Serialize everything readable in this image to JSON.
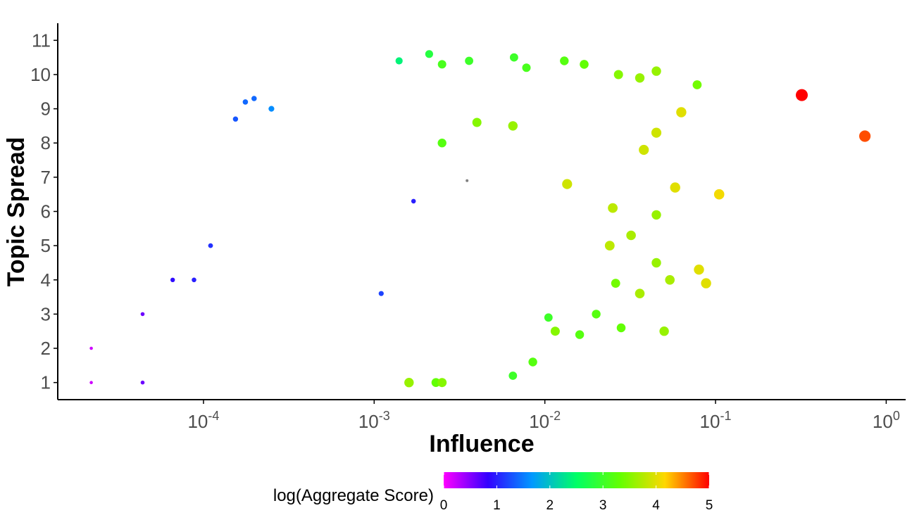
{
  "chart_data": {
    "type": "scatter",
    "title": "",
    "xlabel": "Influence",
    "ylabel": "Topic Spread",
    "xscale": "log10",
    "xlim": [
      1.4e-05,
      1.3
    ],
    "ylim": [
      0.5,
      11.5
    ],
    "x_ticks": [
      {
        "value": 0.0001,
        "base": "10",
        "exp": "-4"
      },
      {
        "value": 0.001,
        "base": "10",
        "exp": "-3"
      },
      {
        "value": 0.01,
        "base": "10",
        "exp": "-2"
      },
      {
        "value": 0.1,
        "base": "10",
        "exp": "-1"
      },
      {
        "value": 1,
        "base": "10",
        "exp": "0"
      }
    ],
    "y_ticks": [
      "1",
      "2",
      "3",
      "4",
      "5",
      "6",
      "7",
      "8",
      "9",
      "10",
      "11"
    ],
    "grid": false,
    "legend": {
      "title": "log(Aggregate Score)",
      "placement": "bottom",
      "range": [
        0,
        5
      ],
      "tick_labels": [
        "0",
        "1",
        "2",
        "3",
        "4",
        "5"
      ],
      "colors": [
        "#ff00ff",
        "#3300ff",
        "#0099ff",
        "#00ff66",
        "#66ff00",
        "#ffd700",
        "#ff0000"
      ]
    },
    "missing_color": "#808080",
    "point_size": "increases with log(Aggregate Score)",
    "series": [
      {
        "points": [
          {
            "x": 2.2e-05,
            "y": 1,
            "c": 0.2
          },
          {
            "x": 2.2e-05,
            "y": 2,
            "c": 0.2
          },
          {
            "x": 4.4e-05,
            "y": 1,
            "c": 0.6
          },
          {
            "x": 4.4e-05,
            "y": 3,
            "c": 0.6
          },
          {
            "x": 6.6e-05,
            "y": 4,
            "c": 0.9
          },
          {
            "x": 8.8e-05,
            "y": 4,
            "c": 1.0
          },
          {
            "x": 0.00011,
            "y": 5,
            "c": 1.1
          },
          {
            "x": 0.000154,
            "y": 8.7,
            "c": 1.3
          },
          {
            "x": 0.000176,
            "y": 9.2,
            "c": 1.4
          },
          {
            "x": 0.000198,
            "y": 9.3,
            "c": 1.4
          },
          {
            "x": 0.00025,
            "y": 9.0,
            "c": 1.6
          },
          {
            "x": 0.0014,
            "y": 10.4,
            "c": 2.4
          },
          {
            "x": 0.0021,
            "y": 10.6,
            "c": 2.8
          },
          {
            "x": 0.0025,
            "y": 10.3,
            "c": 3.1
          },
          {
            "x": 0.0036,
            "y": 10.4,
            "c": 3.0
          },
          {
            "x": 0.0066,
            "y": 10.5,
            "c": 3.0
          },
          {
            "x": 0.0078,
            "y": 10.2,
            "c": 3.1
          },
          {
            "x": 0.013,
            "y": 10.4,
            "c": 3.2
          },
          {
            "x": 0.017,
            "y": 10.3,
            "c": 3.3
          },
          {
            "x": 0.027,
            "y": 10.0,
            "c": 3.5
          },
          {
            "x": 0.036,
            "y": 9.9,
            "c": 3.6
          },
          {
            "x": 0.045,
            "y": 10.1,
            "c": 3.6
          },
          {
            "x": 0.078,
            "y": 9.7,
            "c": 3.4
          },
          {
            "x": 0.32,
            "y": 9.4,
            "c": 5.0
          },
          {
            "x": 0.75,
            "y": 8.2,
            "c": 4.7
          },
          {
            "x": 0.105,
            "y": 6.5,
            "c": 4.1
          },
          {
            "x": 0.058,
            "y": 6.7,
            "c": 4.0
          },
          {
            "x": 0.063,
            "y": 8.9,
            "c": 4.0
          },
          {
            "x": 0.045,
            "y": 8.3,
            "c": 3.9
          },
          {
            "x": 0.038,
            "y": 7.8,
            "c": 3.9
          },
          {
            "x": 0.045,
            "y": 5.9,
            "c": 3.6
          },
          {
            "x": 0.08,
            "y": 4.3,
            "c": 4.0
          },
          {
            "x": 0.088,
            "y": 3.9,
            "c": 4.0
          },
          {
            "x": 0.054,
            "y": 4.0,
            "c": 3.7
          },
          {
            "x": 0.045,
            "y": 4.5,
            "c": 3.6
          },
          {
            "x": 0.036,
            "y": 3.6,
            "c": 3.7
          },
          {
            "x": 0.05,
            "y": 2.5,
            "c": 3.6
          },
          {
            "x": 0.028,
            "y": 2.6,
            "c": 3.3
          },
          {
            "x": 0.02,
            "y": 3.0,
            "c": 3.2
          },
          {
            "x": 0.026,
            "y": 3.9,
            "c": 3.4
          },
          {
            "x": 0.032,
            "y": 5.3,
            "c": 3.7
          },
          {
            "x": 0.024,
            "y": 5.0,
            "c": 3.8
          },
          {
            "x": 0.025,
            "y": 6.1,
            "c": 3.8
          },
          {
            "x": 0.016,
            "y": 2.4,
            "c": 3.2
          },
          {
            "x": 0.0105,
            "y": 2.9,
            "c": 3.0
          },
          {
            "x": 0.0115,
            "y": 2.5,
            "c": 3.5
          },
          {
            "x": 0.0135,
            "y": 6.8,
            "c": 3.9
          },
          {
            "x": 0.0085,
            "y": 1.6,
            "c": 3.2
          },
          {
            "x": 0.0065,
            "y": 1.2,
            "c": 3.0
          },
          {
            "x": 0.0035,
            "y": 6.9,
            "c": -1
          },
          {
            "x": 0.0017,
            "y": 6.3,
            "c": 1.0
          },
          {
            "x": 0.0011,
            "y": 3.6,
            "c": 1.2
          },
          {
            "x": 0.0016,
            "y": 1.0,
            "c": 3.6
          },
          {
            "x": 0.0025,
            "y": 1.0,
            "c": 3.5
          },
          {
            "x": 0.0023,
            "y": 1.0,
            "c": 3.3
          },
          {
            "x": 0.0025,
            "y": 8.0,
            "c": 3.2
          },
          {
            "x": 0.004,
            "y": 8.6,
            "c": 3.5
          },
          {
            "x": 0.0065,
            "y": 8.5,
            "c": 3.6
          }
        ]
      }
    ]
  }
}
